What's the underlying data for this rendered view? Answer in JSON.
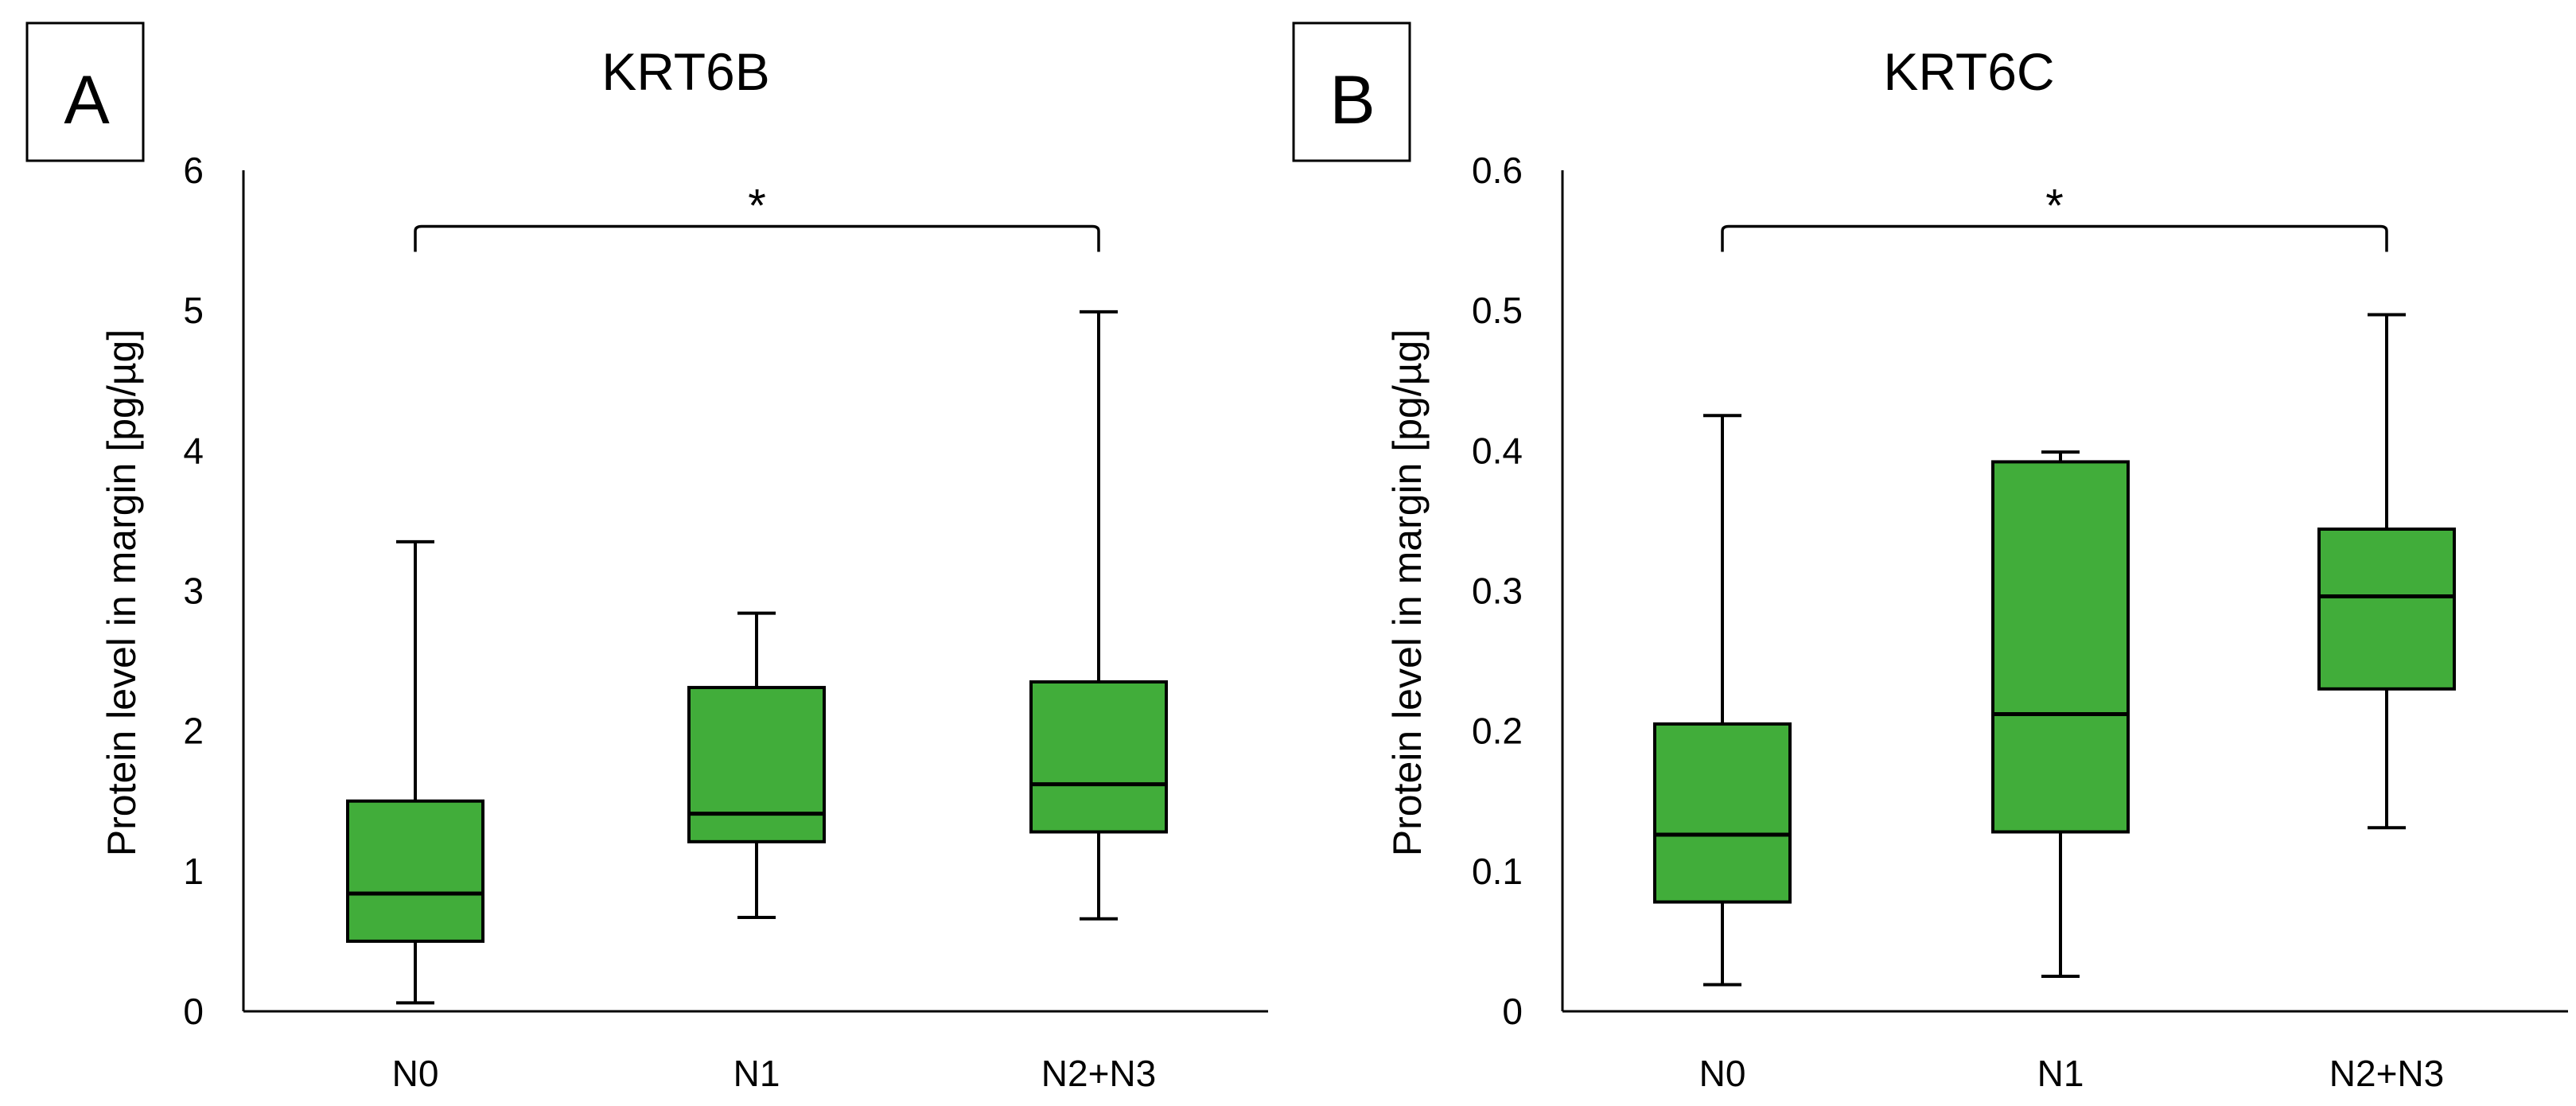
{
  "box_color": "#41ad3a",
  "chart_data": [
    {
      "type": "box",
      "panel_label": "A",
      "title": "KRT6B",
      "xlabel": "",
      "ylabel": "Protein level in margin [pg/µg]",
      "ylim": [
        0,
        6
      ],
      "yticks": [
        0,
        1,
        2,
        3,
        4,
        5,
        6
      ],
      "ytick_labels": [
        "0",
        "1",
        "2",
        "3",
        "4",
        "5",
        "6"
      ],
      "categories": [
        "N0",
        "N1",
        "N2+N3"
      ],
      "boxes": [
        {
          "name": "N0",
          "min": 0.06,
          "q1": 0.5,
          "median": 0.84,
          "q3": 1.5,
          "max": 3.35
        },
        {
          "name": "N1",
          "min": 0.67,
          "q1": 1.21,
          "median": 1.41,
          "q3": 2.31,
          "max": 2.84
        },
        {
          "name": "N2+N3",
          "min": 0.66,
          "q1": 1.28,
          "median": 1.62,
          "q3": 2.35,
          "max": 4.99
        }
      ],
      "significance": {
        "from": "N0",
        "to": "N2+N3",
        "label": "*",
        "level": 5.6
      }
    },
    {
      "type": "box",
      "panel_label": "B",
      "title": "KRT6C",
      "xlabel": "",
      "ylabel": "Protein level in margin [pg/µg]",
      "ylim": [
        0,
        0.6
      ],
      "yticks": [
        0,
        0.1,
        0.2,
        0.3,
        0.4,
        0.5,
        0.6
      ],
      "ytick_labels": [
        "0",
        "0.1",
        "0.2",
        "0.3",
        "0.4",
        "0.5",
        "0.6"
      ],
      "categories": [
        "N0",
        "N1",
        "N2+N3"
      ],
      "boxes": [
        {
          "name": "N0",
          "min": 0.019,
          "q1": 0.078,
          "median": 0.126,
          "q3": 0.205,
          "max": 0.425
        },
        {
          "name": "N1",
          "min": 0.025,
          "q1": 0.128,
          "median": 0.212,
          "q3": 0.392,
          "max": 0.399
        },
        {
          "name": "N2+N3",
          "min": 0.131,
          "q1": 0.23,
          "median": 0.296,
          "q3": 0.344,
          "max": 0.497
        }
      ],
      "significance": {
        "from": "N0",
        "to": "N2+N3",
        "label": "*",
        "level": 0.56
      }
    }
  ]
}
